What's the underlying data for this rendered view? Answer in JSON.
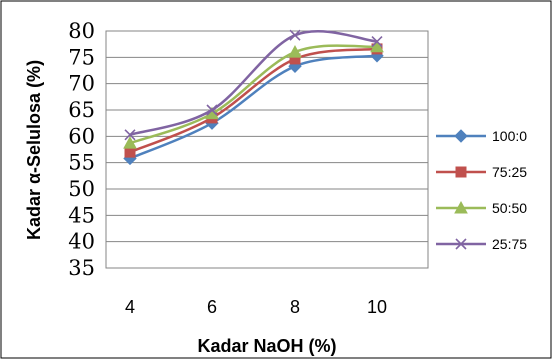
{
  "chart_data": {
    "type": "line",
    "xlabel": "Kadar NaOH (%)",
    "ylabel": "Kadar α-Selulosa (%)",
    "ylim": [
      35,
      80
    ],
    "yticks": [
      35,
      40,
      45,
      50,
      55,
      60,
      65,
      70,
      75,
      80
    ],
    "categories": [
      "4",
      "6",
      "8",
      "10"
    ],
    "grid": "horizontal",
    "legend_position": "right",
    "smooth": true,
    "series": [
      {
        "name": "100:0",
        "values": [
          55.8,
          62.5,
          73.3,
          75.3
        ],
        "color": "#4F81BD",
        "marker": "diamond"
      },
      {
        "name": "75:25",
        "values": [
          57.0,
          63.5,
          74.7,
          76.6
        ],
        "color": "#C0504D",
        "marker": "square"
      },
      {
        "name": "50:50",
        "values": [
          58.7,
          64.3,
          76.0,
          77.0
        ],
        "color": "#9BBB59",
        "marker": "triangle"
      },
      {
        "name": "25:75",
        "values": [
          60.3,
          65.0,
          79.2,
          78.0
        ],
        "color": "#8064A2",
        "marker": "x"
      }
    ]
  }
}
